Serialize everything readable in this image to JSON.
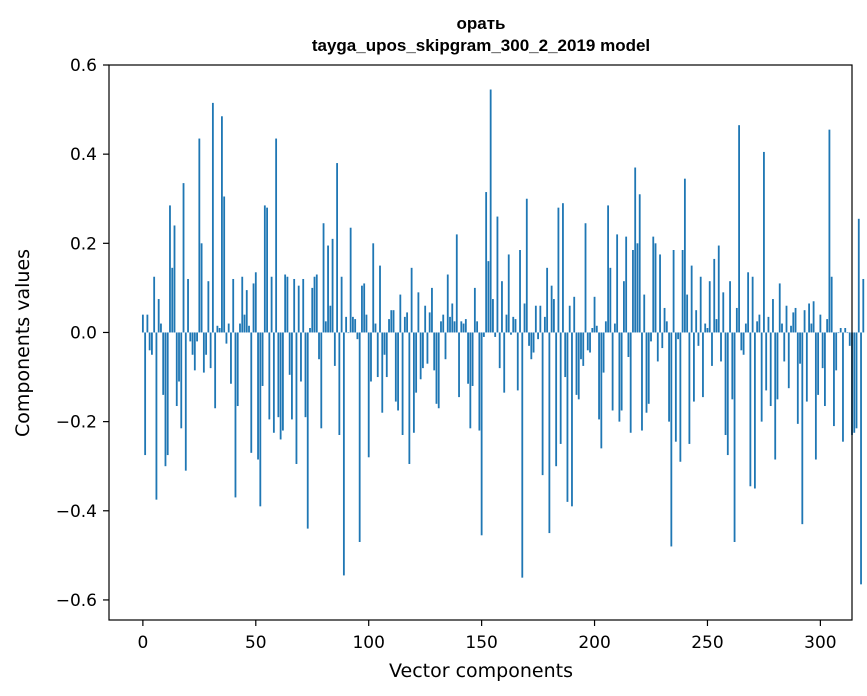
{
  "chart_data": {
    "type": "bar",
    "title_line1": "орать",
    "title_line2": "tayga_upos_skipgram_300_2_2019 model",
    "xlabel": "Vector components",
    "ylabel": "Components values",
    "xlim": [
      -15,
      314
    ],
    "ylim": [
      -0.645,
      0.6
    ],
    "xticks": [
      0,
      50,
      100,
      150,
      200,
      250,
      300
    ],
    "yticks": [
      -0.6,
      -0.4,
      -0.2,
      0.0,
      0.2,
      0.4,
      0.6
    ],
    "ytick_labels": [
      "−0.6",
      "−0.4",
      "−0.2",
      "0.0",
      "0.2",
      "0.4",
      "0.6"
    ],
    "xtick_labels": [
      "0",
      "50",
      "100",
      "150",
      "200",
      "250",
      "300"
    ],
    "color": "#1f77b4",
    "values": [
      0.04,
      -0.275,
      0.04,
      -0.04,
      -0.05,
      0.125,
      -0.375,
      0.075,
      0.02,
      -0.14,
      -0.3,
      -0.275,
      0.285,
      0.145,
      0.24,
      -0.165,
      -0.11,
      -0.215,
      0.335,
      -0.31,
      0.12,
      -0.02,
      -0.05,
      -0.085,
      -0.02,
      0.435,
      0.2,
      -0.09,
      -0.05,
      0.115,
      -0.08,
      0.515,
      -0.17,
      0.015,
      0.01,
      0.485,
      0.305,
      -0.025,
      0.02,
      -0.115,
      0.12,
      -0.37,
      -0.165,
      0.02,
      0.125,
      0.04,
      0.095,
      0.015,
      -0.27,
      0.11,
      0.135,
      -0.285,
      -0.39,
      -0.12,
      0.285,
      0.28,
      -0.195,
      0.125,
      -0.225,
      0.435,
      -0.19,
      -0.24,
      -0.22,
      0.13,
      0.125,
      -0.095,
      -0.195,
      0.12,
      -0.295,
      0.105,
      -0.11,
      0.12,
      -0.19,
      -0.44,
      0.01,
      0.1,
      0.125,
      0.13,
      -0.06,
      -0.215,
      0.245,
      0.025,
      0.195,
      0.06,
      0.21,
      -0.075,
      0.38,
      -0.23,
      0.125,
      -0.545,
      0.035,
      0.0,
      0.235,
      0.035,
      0.03,
      -0.015,
      -0.47,
      0.105,
      0.11,
      0.04,
      -0.28,
      -0.11,
      0.2,
      0.02,
      -0.1,
      0.15,
      -0.18,
      -0.05,
      -0.1,
      0.03,
      0.05,
      0.05,
      -0.155,
      -0.175,
      0.085,
      -0.23,
      0.035,
      0.045,
      -0.295,
      0.145,
      -0.225,
      -0.135,
      0.09,
      -0.105,
      -0.08,
      0.06,
      -0.07,
      0.045,
      0.1,
      -0.085,
      -0.16,
      -0.17,
      0.025,
      0.04,
      -0.06,
      0.13,
      0.035,
      0.065,
      0.025,
      0.22,
      -0.145,
      0.025,
      0.02,
      0.03,
      -0.115,
      -0.215,
      -0.12,
      0.1,
      0.025,
      -0.22,
      -0.455,
      -0.01,
      0.315,
      0.16,
      0.545,
      0.075,
      -0.01,
      0.26,
      -0.08,
      0.115,
      -0.135,
      0.04,
      0.175,
      -0.005,
      0.035,
      0.03,
      -0.13,
      0.185,
      -0.55,
      0.065,
      0.3,
      -0.03,
      -0.06,
      -0.045,
      0.06,
      -0.015,
      0.06,
      -0.32,
      0.035,
      0.145,
      -0.45,
      0.105,
      0.075,
      -0.3,
      0.28,
      -0.25,
      0.29,
      -0.1,
      -0.38,
      0.06,
      -0.39,
      0.08,
      -0.14,
      -0.15,
      -0.06,
      -0.075,
      0.245,
      -0.04,
      -0.045,
      0.01,
      0.08,
      0.015,
      -0.195,
      -0.26,
      -0.09,
      0.025,
      0.285,
      0.145,
      -0.175,
      0.02,
      0.22,
      -0.2,
      -0.175,
      0.115,
      0.215,
      -0.055,
      -0.225,
      0.185,
      0.37,
      0.2,
      0.31,
      -0.22,
      0.085,
      -0.18,
      -0.16,
      -0.02,
      0.215,
      0.2,
      -0.065,
      0.175,
      -0.035,
      0.055,
      0.025,
      -0.2,
      -0.48,
      0.185,
      -0.245,
      -0.015,
      -0.29,
      0.185,
      0.345,
      0.085,
      -0.25,
      0.15,
      -0.155,
      0.05,
      -0.03,
      0.125,
      -0.145,
      0.02,
      0.01,
      0.115,
      -0.075,
      0.165,
      0.03,
      0.195,
      -0.065,
      0.09,
      -0.23,
      -0.275,
      0.115,
      -0.15,
      -0.47,
      0.055,
      0.465,
      -0.04,
      -0.05,
      0.02,
      0.135,
      -0.345,
      0.125,
      -0.35,
      0.025,
      0.04,
      -0.2,
      0.405,
      -0.13,
      0.035,
      -0.165,
      0.075,
      -0.285,
      -0.15,
      0.11,
      0.02,
      -0.065,
      0.06,
      -0.125,
      0.015,
      0.045,
      0.055,
      -0.205,
      -0.07,
      -0.43,
      0.05,
      -0.155,
      0.065,
      0.02,
      0.07,
      -0.285,
      -0.14,
      0.04,
      -0.08,
      -0.165,
      0.03,
      0.455,
      0.125,
      -0.21,
      -0.085,
      0.0,
      0.01,
      -0.245,
      0.01,
      0.0,
      -0.03,
      -0.23,
      -0.225,
      -0.215,
      0.255,
      -0.565,
      0.12
    ]
  }
}
